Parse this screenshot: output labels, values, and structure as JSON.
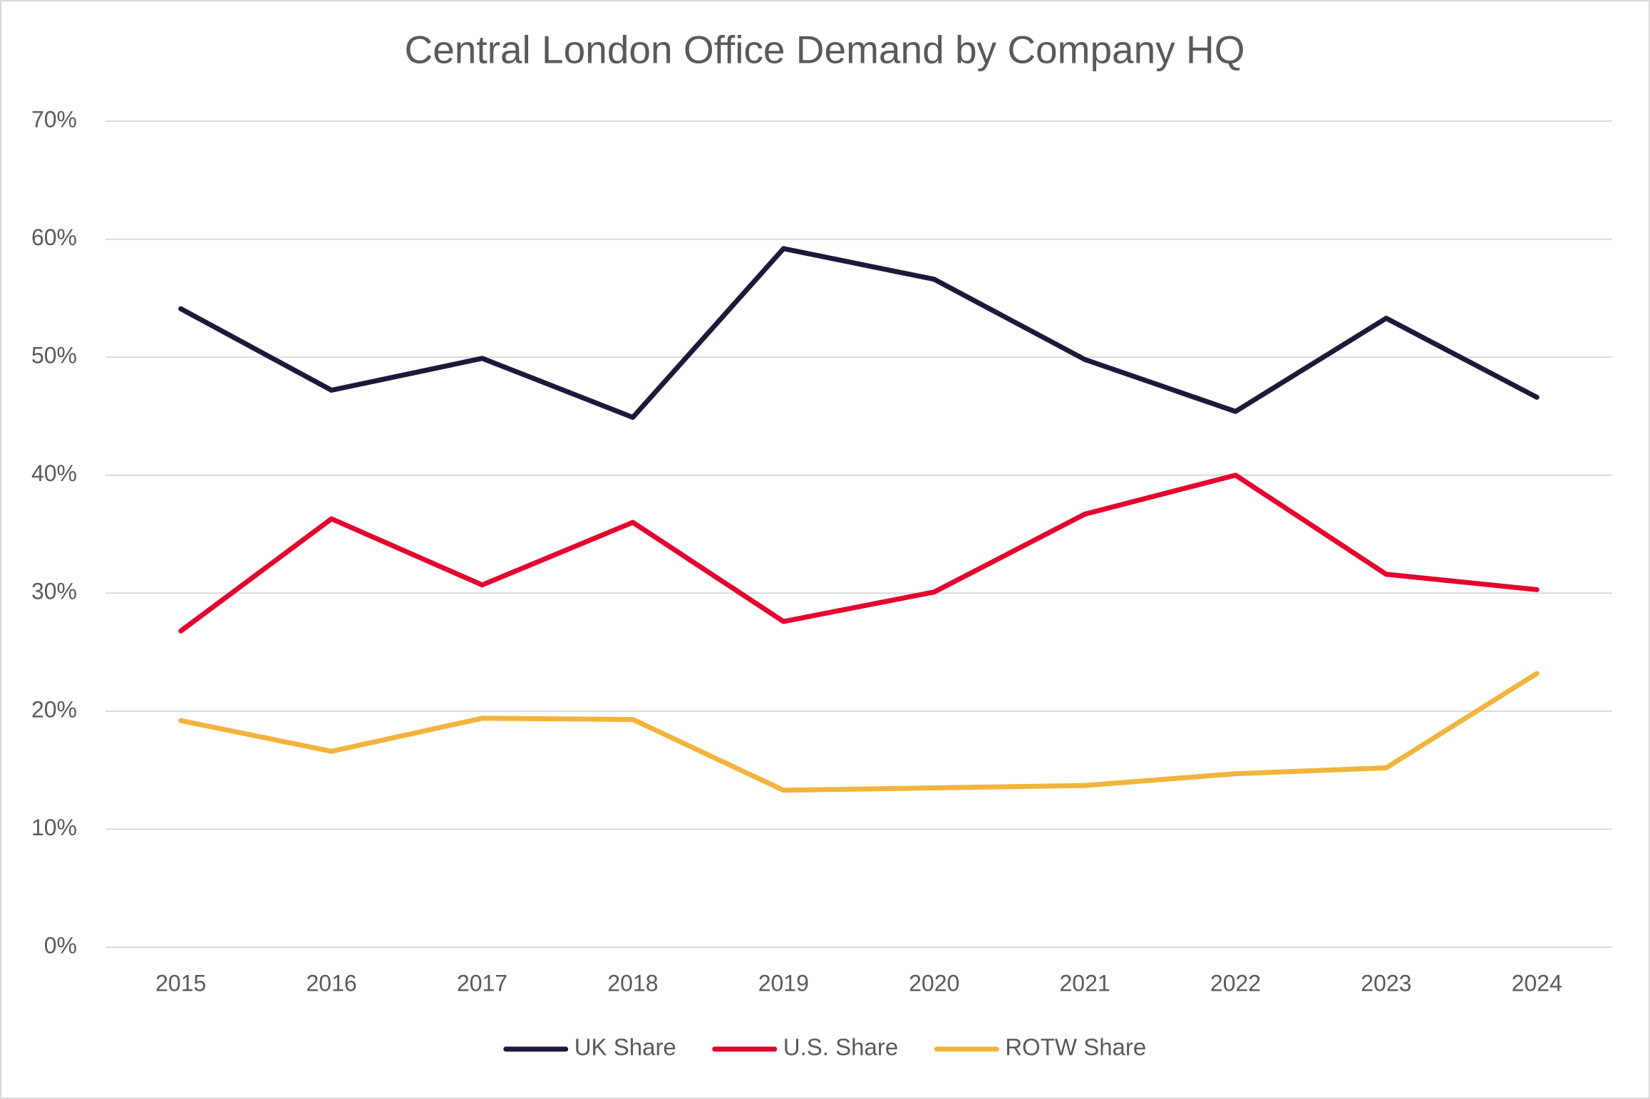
{
  "chart_data": {
    "type": "line",
    "title": "Central London Office Demand by Company HQ",
    "categories": [
      "2015",
      "2016",
      "2017",
      "2018",
      "2019",
      "2020",
      "2021",
      "2022",
      "2023",
      "2024"
    ],
    "series": [
      {
        "name": "UK Share",
        "color": "#1c1a3a",
        "values": [
          54.1,
          47.2,
          49.9,
          44.9,
          59.2,
          56.6,
          49.8,
          45.4,
          53.3,
          46.6
        ]
      },
      {
        "name": "U.S. Share",
        "color": "#e4032e",
        "values": [
          26.8,
          36.3,
          30.7,
          36.0,
          27.6,
          30.1,
          36.7,
          40.0,
          31.6,
          30.3
        ]
      },
      {
        "name": "ROTW Share",
        "color": "#f0b43c",
        "values": [
          19.2,
          16.6,
          19.4,
          19.3,
          13.3,
          13.5,
          13.7,
          14.7,
          15.2,
          23.2
        ]
      }
    ],
    "ylim": [
      0,
      70
    ],
    "yticks": [
      {
        "value": 0,
        "label": "0%"
      },
      {
        "value": 10,
        "label": "10%"
      },
      {
        "value": 20,
        "label": "20%"
      },
      {
        "value": 30,
        "label": "30%"
      },
      {
        "value": 40,
        "label": "40%"
      },
      {
        "value": 50,
        "label": "50%"
      },
      {
        "value": 60,
        "label": "60%"
      },
      {
        "value": 70,
        "label": "70%"
      }
    ],
    "grid": true,
    "legend": "bottom"
  }
}
